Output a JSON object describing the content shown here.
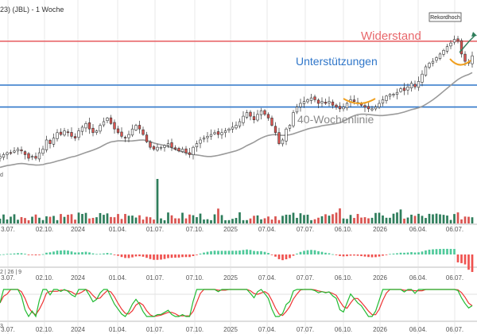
{
  "title": "23) (JBL) - 1 Woche",
  "annotations": {
    "widerstand": "Widerstand",
    "unterstuetzungen": "Unterstützungen",
    "wochenlinie": "40-Wochenlinie",
    "rekordhoch": "Rekordhoch"
  },
  "volume_axis_label": "d",
  "macd_label": "2 | 26 | 9",
  "stoch_label": "3",
  "bottom_tick_prefix": "0",
  "colors": {
    "up": "#2e7d5b",
    "down": "#d9534f",
    "widerstand": "#e8676b",
    "support": "#2f76c9",
    "ma": "#9a9a9a",
    "highlight": "#f0a020",
    "macd_up": "#4fc99a",
    "macd_down": "#ef5350",
    "stoch_k": "#22bb33",
    "stoch_d": "#ee3333",
    "grid": "#dcdcdc"
  },
  "chart_data": {
    "type": "candlestick",
    "x_ticks": [
      "3.07.",
      "02.10.",
      "2024",
      "01.04.",
      "01.07.",
      "07.10.",
      "2025",
      "07.04.",
      "07.07.",
      "06.10.",
      "2026",
      "06.04.",
      "06.07."
    ],
    "levels": {
      "resistance": 144,
      "support_1": 120,
      "support_2": 108
    },
    "closes": [
      81,
      82,
      83,
      83,
      84,
      85,
      84,
      82,
      80,
      81,
      80,
      83,
      85,
      90,
      88,
      91,
      94,
      93,
      95,
      94,
      92,
      91,
      95,
      97,
      99,
      96,
      94,
      95,
      98,
      100,
      102,
      99,
      96,
      94,
      92,
      91,
      93,
      96,
      98,
      96,
      93,
      89,
      86,
      85,
      86,
      86,
      87,
      88,
      86,
      85,
      84,
      85,
      83,
      82,
      86,
      88,
      90,
      91,
      92,
      93,
      94,
      93,
      94,
      95,
      96,
      97,
      98,
      100,
      103,
      105,
      103,
      101,
      104,
      106,
      104,
      102,
      98,
      94,
      88,
      90,
      96,
      98,
      105,
      108,
      110,
      111,
      112,
      113,
      112,
      110,
      111,
      110,
      111,
      109,
      108,
      107,
      108,
      110,
      112,
      111,
      110,
      109,
      108,
      107,
      107,
      108,
      110,
      112,
      114,
      115,
      115,
      116,
      118,
      117,
      119,
      121,
      119,
      122,
      126,
      130,
      132,
      133,
      135,
      137,
      139,
      141,
      143,
      145,
      144,
      137,
      133,
      132,
      136
    ]
  }
}
